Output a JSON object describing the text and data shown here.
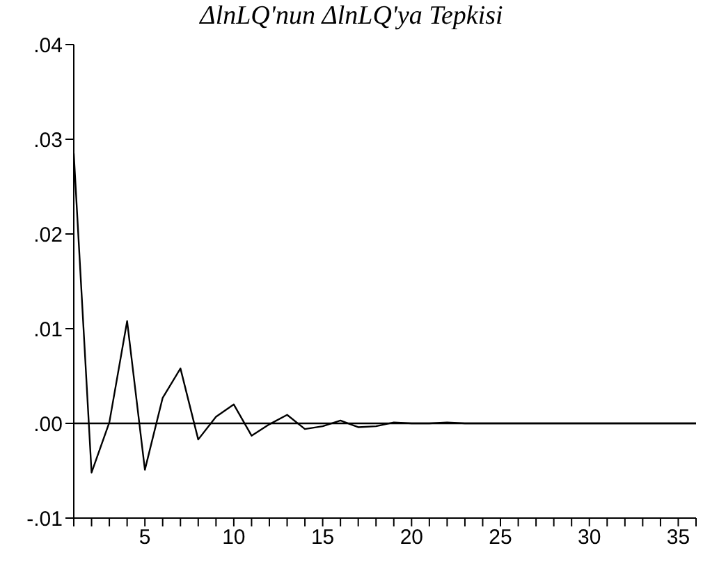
{
  "chart_data": {
    "type": "line",
    "title": "ΔlnLQ'nun ΔlnLQ'ya Tepkisi",
    "x": [
      1,
      2,
      3,
      4,
      5,
      6,
      7,
      8,
      9,
      10,
      11,
      12,
      13,
      14,
      15,
      16,
      17,
      18,
      19,
      20,
      21,
      22,
      23,
      24,
      25,
      26,
      27,
      28,
      29,
      30,
      31,
      32,
      33,
      34,
      35,
      36
    ],
    "series": [
      {
        "color": "#000000",
        "values": [
          0.0285,
          -0.0052,
          0.0001,
          0.0108,
          -0.0049,
          0.0027,
          0.0058,
          -0.0017,
          0.0007,
          0.002,
          -0.0013,
          -0.0001,
          0.0009,
          -0.0006,
          -0.0003,
          0.0003,
          -0.0004,
          -0.0003,
          0.0001,
          0,
          0,
          0.0001,
          0,
          0,
          0,
          0,
          0,
          0,
          0,
          0,
          0,
          0,
          0,
          0,
          0,
          0
        ]
      }
    ],
    "xlim": [
      1,
      36
    ],
    "xticks": [
      {
        "value": 1,
        "label": null
      },
      {
        "value": 2,
        "label": null
      },
      {
        "value": 3,
        "label": null
      },
      {
        "value": 4,
        "label": null
      },
      5,
      {
        "value": 6,
        "label": null
      },
      {
        "value": 7,
        "label": null
      },
      {
        "value": 8,
        "label": null
      },
      {
        "value": 9,
        "label": null
      },
      10,
      {
        "value": 11,
        "label": null
      },
      {
        "value": 12,
        "label": null
      },
      {
        "value": 13,
        "label": null
      },
      {
        "value": 14,
        "label": null
      },
      15,
      {
        "value": 16,
        "label": null
      },
      {
        "value": 17,
        "label": null
      },
      {
        "value": 18,
        "label": null
      },
      {
        "value": 19,
        "label": null
      },
      20,
      {
        "value": 21,
        "label": null
      },
      {
        "value": 22,
        "label": null
      },
      {
        "value": 23,
        "label": null
      },
      {
        "value": 24,
        "label": null
      },
      25,
      {
        "value": 26,
        "label": null
      },
      {
        "value": 27,
        "label": null
      },
      {
        "value": 28,
        "label": null
      },
      {
        "value": 29,
        "label": null
      },
      30,
      {
        "value": 31,
        "label": null
      },
      {
        "value": 32,
        "label": null
      },
      {
        "value": 33,
        "label": null
      },
      {
        "value": 34,
        "label": null
      },
      35,
      {
        "value": 36,
        "label": null
      }
    ],
    "ylim": [
      -0.01,
      0.04
    ],
    "yticks": [
      {
        "value": -0.01,
        "label": "-.01"
      },
      {
        "value": 0,
        "label": ".00"
      },
      {
        "value": 0.01,
        "label": ".01"
      },
      {
        "value": 0.02,
        "label": ".02"
      },
      {
        "value": 0.03,
        "label": ".03"
      },
      {
        "value": 0.04,
        "label": ".04"
      }
    ],
    "ref_lines": [
      {
        "axis": "y",
        "value": 0,
        "color": "#000000"
      }
    ],
    "grid": false,
    "legend": false,
    "marker": "none",
    "line_style": "solid"
  }
}
